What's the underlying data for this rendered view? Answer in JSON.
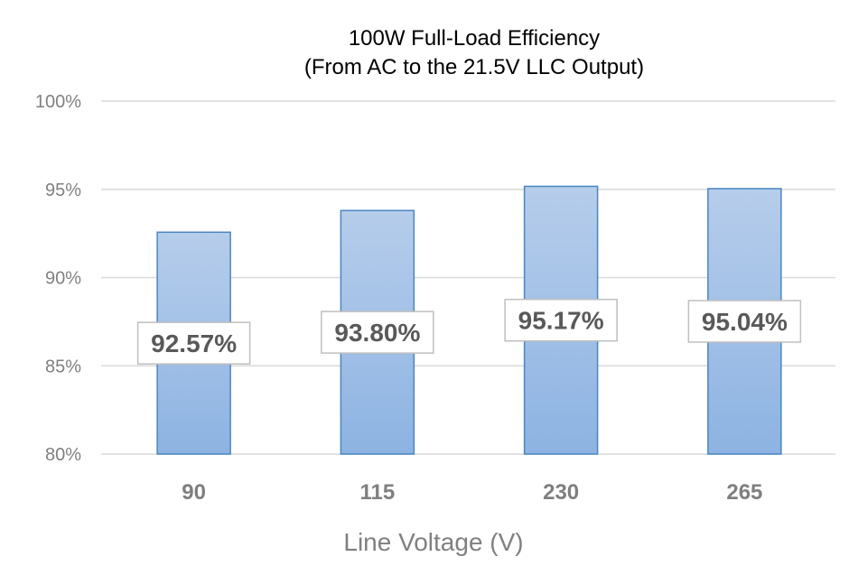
{
  "chart_data": {
    "type": "bar",
    "title": [
      "100W Full-Load Efficiency",
      "(From AC to the 21.5V LLC Output)"
    ],
    "xlabel": "Line Voltage (V)",
    "ylabel": "",
    "categories": [
      "90",
      "115",
      "230",
      "265"
    ],
    "values": [
      92.57,
      93.8,
      95.17,
      95.04
    ],
    "data_labels": [
      "92.57%",
      "93.80%",
      "95.17%",
      "95.04%"
    ],
    "ylim": [
      80,
      100
    ],
    "yticks": [
      80,
      85,
      90,
      95,
      100
    ],
    "ytick_labels": [
      "80%",
      "85%",
      "90%",
      "95%",
      "100%"
    ],
    "grid": true,
    "legend": "none",
    "colors": {
      "bar_top": "#b6cdeb",
      "bar_bottom": "#8db3e2",
      "bar_border": "#4a86c0",
      "grid": "#d9d9d9"
    }
  }
}
